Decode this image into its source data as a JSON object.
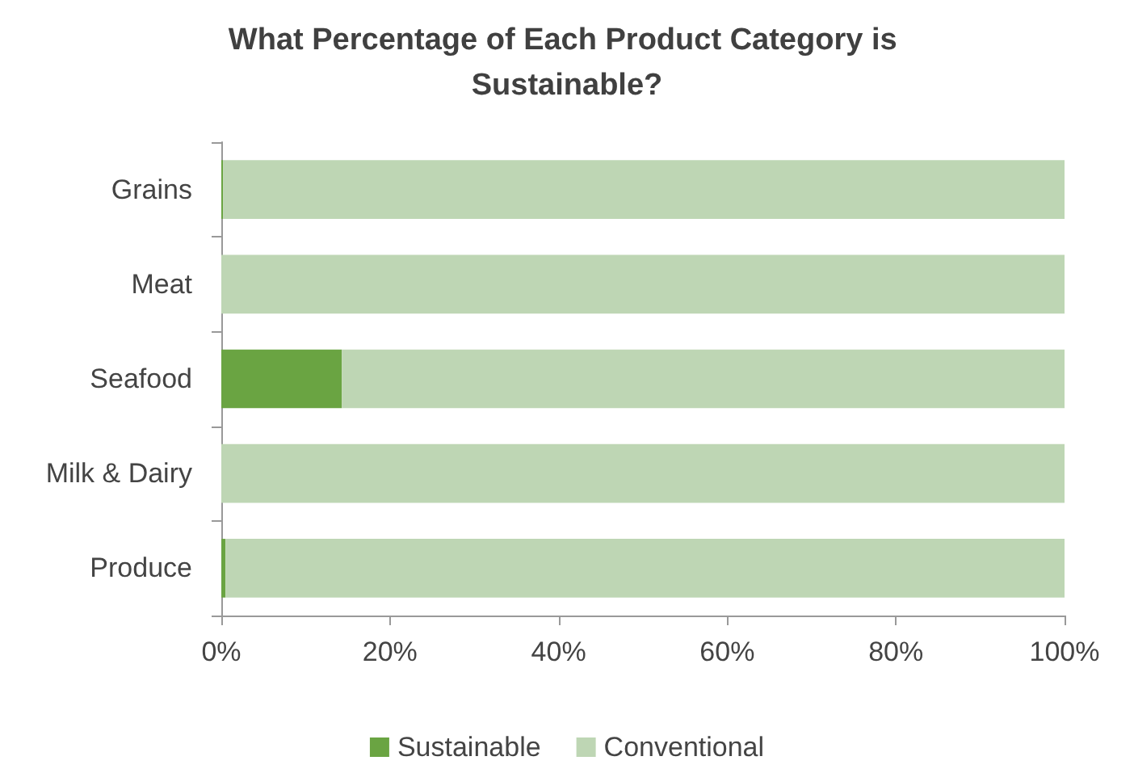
{
  "chart_data": {
    "type": "bar",
    "title": "What Percentage of Each Product Category is Sustainable?",
    "orientation": "horizontal",
    "stacked": true,
    "categories": [
      "Grains",
      "Meat",
      "Seafood",
      "Milk & Dairy",
      "Produce"
    ],
    "series": [
      {
        "name": "Sustainable",
        "color": "#6aa442",
        "values": [
          0.2,
          0,
          14.3,
          0,
          0.5
        ]
      },
      {
        "name": "Conventional",
        "color": "#bed6b4",
        "values": [
          99.8,
          100,
          85.7,
          100,
          99.5
        ]
      }
    ],
    "xlim": [
      0,
      100
    ],
    "xticks": [
      {
        "value": 0,
        "label": "0%"
      },
      {
        "value": 20,
        "label": "20%"
      },
      {
        "value": 40,
        "label": "40%"
      },
      {
        "value": 60,
        "label": "60%"
      },
      {
        "value": 80,
        "label": "80%"
      },
      {
        "value": 100,
        "label": "100%"
      }
    ],
    "grid": false,
    "legend": "bottom"
  }
}
